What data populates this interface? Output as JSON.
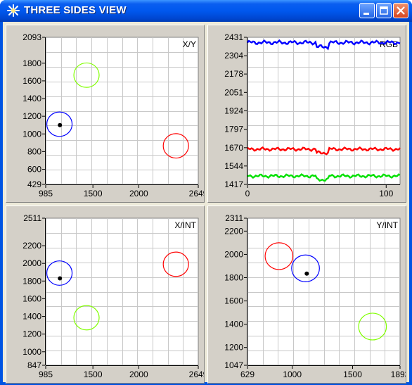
{
  "window": {
    "title": "THREE SIDES VIEW",
    "icon": "sparkle-icon",
    "title_color": "#ffffff"
  },
  "chart_data": [
    {
      "type": "scatter",
      "title": "X/Y",
      "xlim": [
        985,
        2649
      ],
      "ylim": [
        429,
        2093
      ],
      "x_ticks": [
        "985",
        "1500",
        "2000",
        "2649"
      ],
      "y_ticks": [
        "2093",
        "1800",
        "1600",
        "1400",
        "1200",
        "1000",
        "800",
        "600",
        "429"
      ],
      "circles": [
        {
          "color": "#0000ff",
          "cx": 1135,
          "cy": 1110,
          "r": 138
        },
        {
          "color": "#80ff00",
          "cx": 1430,
          "cy": 1665,
          "r": 138
        },
        {
          "color": "#ff0000",
          "cx": 2405,
          "cy": 865,
          "r": 138
        }
      ],
      "points": [
        {
          "x": 1140,
          "y": 1100,
          "color": "#000000"
        }
      ],
      "grid": true
    },
    {
      "type": "line",
      "title": "RGB",
      "xlim": [
        0,
        110
      ],
      "ylim": [
        1417,
        2431
      ],
      "x_ticks": [
        "0",
        "100"
      ],
      "y_ticks": [
        "2431",
        "2304",
        "2178",
        "2051",
        "1924",
        "1797",
        "1670",
        "1544",
        "1417"
      ],
      "series": [
        {
          "color": "#0000ff",
          "base": 2395,
          "amp": 14,
          "dip_at": 50,
          "dip": 30
        },
        {
          "color": "#ff0000",
          "base": 1660,
          "amp": 12,
          "dip_at": 50,
          "dip": 25
        },
        {
          "color": "#00e000",
          "base": 1475,
          "amp": 12,
          "dip_at": 50,
          "dip": 25
        }
      ],
      "grid": true
    },
    {
      "type": "scatter",
      "title": "X/INT",
      "xlim": [
        985,
        2649
      ],
      "ylim": [
        847,
        2511
      ],
      "x_ticks": [
        "985",
        "1500",
        "2000",
        "2649"
      ],
      "y_ticks": [
        "2511",
        "2200",
        "2000",
        "1800",
        "1600",
        "1400",
        "1200",
        "1000",
        "847"
      ],
      "circles": [
        {
          "color": "#0000ff",
          "cx": 1135,
          "cy": 1890,
          "r": 138
        },
        {
          "color": "#80ff00",
          "cx": 1430,
          "cy": 1385,
          "r": 138
        },
        {
          "color": "#ff0000",
          "cx": 2405,
          "cy": 1990,
          "r": 138
        }
      ],
      "points": [
        {
          "x": 1140,
          "y": 1830,
          "color": "#000000"
        }
      ],
      "grid": true
    },
    {
      "type": "scatter",
      "title": "Y/INT",
      "xlim": [
        629,
        1893
      ],
      "ylim": [
        1047,
        2311
      ],
      "x_ticks": [
        "629",
        "1000",
        "1500",
        "1893"
      ],
      "y_ticks": [
        "2311",
        "2200",
        "2000",
        "1800",
        "1600",
        "1400",
        "1200",
        "1047"
      ],
      "circles": [
        {
          "color": "#ff0000",
          "cx": 890,
          "cy": 1985,
          "r": 115
        },
        {
          "color": "#0000ff",
          "cx": 1110,
          "cy": 1880,
          "r": 115
        },
        {
          "color": "#80ff00",
          "cx": 1665,
          "cy": 1380,
          "r": 115
        }
      ],
      "points": [
        {
          "x": 1120,
          "y": 1835,
          "color": "#000000"
        }
      ],
      "grid": true
    }
  ]
}
